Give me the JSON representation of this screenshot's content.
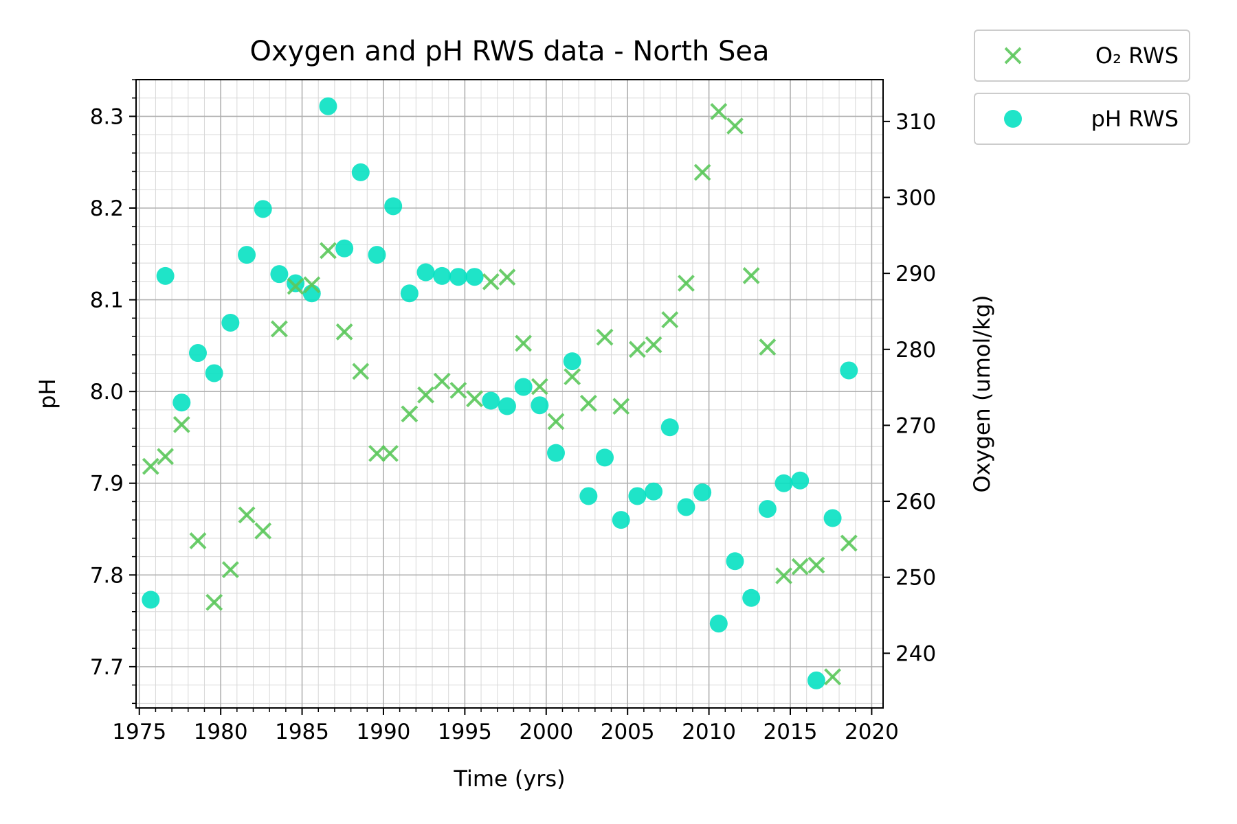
{
  "chart_data": {
    "type": "scatter",
    "title": "Oxygen and pH RWS data - North Sea",
    "xlabel": "Time (yrs)",
    "ylabel_left": "pH",
    "ylabel_right": "Oxygen (umol/kg)",
    "xlim": [
      1974.8,
      2020.7
    ],
    "ylim_left": [
      7.655,
      8.34
    ],
    "ylim_right": [
      232.8,
      315.5
    ],
    "x_ticks": [
      1975,
      1980,
      1985,
      1990,
      1995,
      2000,
      2005,
      2010,
      2015,
      2020
    ],
    "x_tick_labels": [
      "1975",
      "1980",
      "1985",
      "1990",
      "1995",
      "2000",
      "2005",
      "2010",
      "2015",
      "2020"
    ],
    "y_left_ticks": [
      7.7,
      7.8,
      7.9,
      8.0,
      8.1,
      8.2,
      8.3
    ],
    "y_left_tick_labels": [
      "7.7",
      "7.8",
      "7.9",
      "8.0",
      "8.1",
      "8.2",
      "8.3"
    ],
    "y_right_ticks": [
      240,
      250,
      260,
      270,
      280,
      290,
      300,
      310
    ],
    "y_right_tick_labels": [
      "240",
      "250",
      "260",
      "270",
      "280",
      "290",
      "300",
      "310"
    ],
    "grid": true,
    "minor_grid": true,
    "legend_placement": "outside top-right",
    "series": [
      {
        "name": "pH RWS",
        "axis": "left",
        "marker": "circle",
        "color": "#00E0C0",
        "x": [
          1975.7,
          1976.6,
          1977.6,
          1978.6,
          1979.6,
          1980.6,
          1981.6,
          1982.6,
          1983.6,
          1984.6,
          1985.6,
          1986.6,
          1987.6,
          1988.6,
          1989.6,
          1990.6,
          1991.6,
          1992.6,
          1993.6,
          1994.6,
          1995.6,
          1996.6,
          1997.6,
          1998.6,
          1999.6,
          2000.6,
          2001.6,
          2002.6,
          2003.6,
          2004.6,
          2005.6,
          2006.6,
          2007.6,
          2008.6,
          2009.6,
          2010.6,
          2011.6,
          2012.6,
          2013.6,
          2014.6,
          2015.6,
          2016.6,
          2017.6,
          2018.6
        ],
        "y": [
          7.773,
          8.126,
          7.988,
          8.042,
          8.02,
          8.075,
          8.149,
          8.199,
          8.128,
          8.118,
          8.107,
          8.311,
          8.156,
          8.239,
          8.149,
          8.202,
          8.107,
          8.13,
          8.126,
          8.125,
          8.125,
          7.99,
          7.984,
          8.005,
          7.985,
          7.933,
          8.033,
          7.886,
          7.928,
          7.86,
          7.886,
          7.891,
          7.961,
          7.874,
          7.89,
          7.747,
          7.815,
          7.775,
          7.872,
          7.9,
          7.903,
          7.685,
          7.862,
          8.023
        ]
      },
      {
        "name": "O₂ RWS",
        "axis": "right",
        "marker": "x",
        "color": "#5CC85C",
        "x": [
          1975.7,
          1976.6,
          1977.6,
          1978.6,
          1979.6,
          1980.6,
          1981.6,
          1982.6,
          1983.6,
          1984.6,
          1985.6,
          1986.6,
          1987.6,
          1988.6,
          1989.6,
          1990.4,
          1991.6,
          1992.6,
          1993.6,
          1994.6,
          1995.6,
          1996.6,
          1997.6,
          1998.6,
          1999.6,
          2000.6,
          2001.6,
          2002.6,
          2003.6,
          2004.6,
          2005.6,
          2006.6,
          2007.6,
          2008.6,
          2009.6,
          2010.6,
          2011.6,
          2012.6,
          2013.6,
          2014.6,
          2015.6,
          2016.6,
          2017.6,
          2018.6
        ],
        "y": [
          264.6,
          265.9,
          270.1,
          254.8,
          246.7,
          251.0,
          258.2,
          256.1,
          282.7,
          288.3,
          288.5,
          293.0,
          282.3,
          277.1,
          266.3,
          266.3,
          271.5,
          274.0,
          275.8,
          274.6,
          273.5,
          288.9,
          289.5,
          280.8,
          275.1,
          270.5,
          276.4,
          272.9,
          281.6,
          272.5,
          280.0,
          280.6,
          283.9,
          288.7,
          303.3,
          311.3,
          309.4,
          289.7,
          280.3,
          250.2,
          251.4,
          251.6,
          236.9,
          254.5
        ]
      }
    ]
  }
}
